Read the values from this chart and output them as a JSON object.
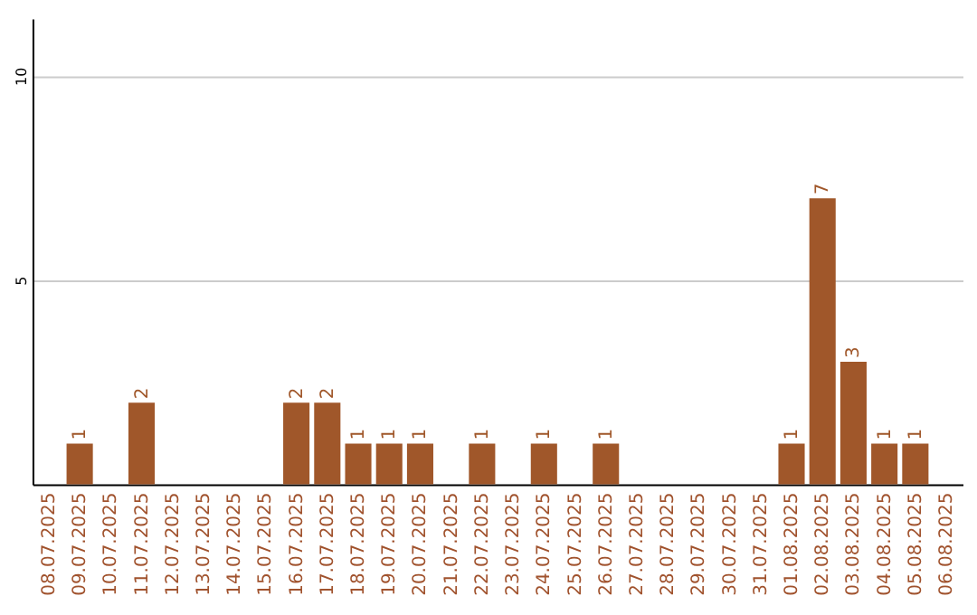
{
  "chart_data": {
    "type": "bar",
    "categories": [
      "08.07.2025",
      "09.07.2025",
      "10.07.2025",
      "11.07.2025",
      "12.07.2025",
      "13.07.2025",
      "14.07.2025",
      "15.07.2025",
      "16.07.2025",
      "17.07.2025",
      "18.07.2025",
      "19.07.2025",
      "20.07.2025",
      "21.07.2025",
      "22.07.2025",
      "23.07.2025",
      "24.07.2025",
      "25.07.2025",
      "26.07.2025",
      "27.07.2025",
      "28.07.2025",
      "29.07.2025",
      "30.07.2025",
      "31.07.2025",
      "01.08.2025",
      "02.08.2025",
      "03.08.2025",
      "04.08.2025",
      "05.08.2025",
      "06.08.2025"
    ],
    "values": [
      0,
      1,
      0,
      2,
      0,
      0,
      0,
      0,
      2,
      2,
      1,
      1,
      1,
      0,
      1,
      0,
      1,
      0,
      1,
      0,
      0,
      0,
      0,
      0,
      1,
      7,
      3,
      1,
      1,
      0
    ],
    "value_labels": [
      null,
      "1",
      null,
      "2",
      null,
      null,
      null,
      null,
      "2",
      "2",
      "1",
      "1",
      "1",
      null,
      "1",
      null,
      "1",
      null,
      "1",
      null,
      null,
      null,
      null,
      null,
      "1",
      "7",
      "3",
      "1",
      "1",
      null
    ],
    "color": "#a0572a",
    "ylim": [
      0,
      11.4
    ],
    "yticks": [
      5,
      10
    ],
    "grid": "y"
  }
}
